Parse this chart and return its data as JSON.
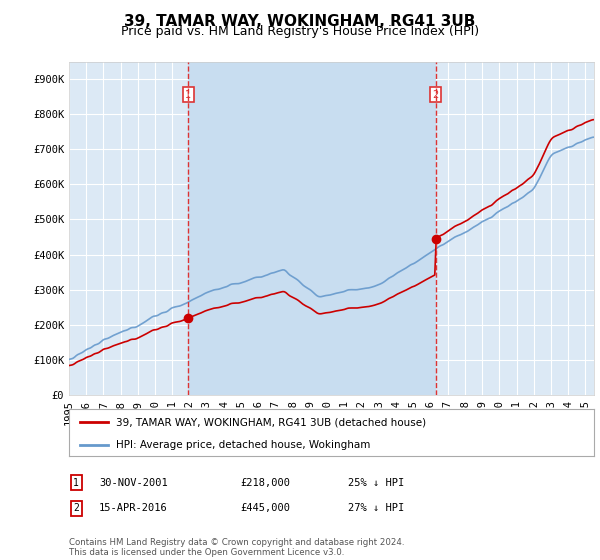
{
  "title": "39, TAMAR WAY, WOKINGHAM, RG41 3UB",
  "subtitle": "Price paid vs. HM Land Registry's House Price Index (HPI)",
  "ylim": [
    0,
    950000
  ],
  "yticks": [
    0,
    100000,
    200000,
    300000,
    400000,
    500000,
    600000,
    700000,
    800000,
    900000
  ],
  "ytick_labels": [
    "£0",
    "£100K",
    "£200K",
    "£300K",
    "£400K",
    "£500K",
    "£600K",
    "£700K",
    "£800K",
    "£900K"
  ],
  "background_color": "#ffffff",
  "plot_bg_color": "#dce9f5",
  "highlight_color": "#c8ddf0",
  "grid_color": "#ffffff",
  "hpi_color": "#6699cc",
  "price_color": "#cc0000",
  "vline_color": "#dd3333",
  "t1": 2001.917,
  "t2": 2016.292,
  "price1": 218000,
  "price2": 445000,
  "annotation1": {
    "label": "1",
    "date": "30-NOV-2001",
    "price": "£218,000",
    "pct": "25% ↓ HPI"
  },
  "annotation2": {
    "label": "2",
    "date": "15-APR-2016",
    "price": "£445,000",
    "pct": "27% ↓ HPI"
  },
  "legend_line1": "39, TAMAR WAY, WOKINGHAM, RG41 3UB (detached house)",
  "legend_line2": "HPI: Average price, detached house, Wokingham",
  "footnote": "Contains HM Land Registry data © Crown copyright and database right 2024.\nThis data is licensed under the Open Government Licence v3.0.",
  "title_fontsize": 11,
  "subtitle_fontsize": 9,
  "tick_fontsize": 7.5,
  "xlim_start": 1995.0,
  "xlim_end": 2025.5
}
